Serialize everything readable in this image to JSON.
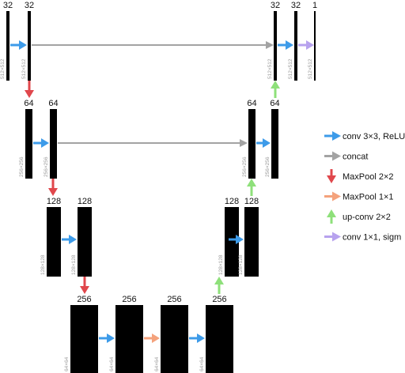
{
  "colors": {
    "block": "#000000",
    "conv": "#3d9be9",
    "concat": "#a3a3a3",
    "maxpool": "#e0474c",
    "maxpool1x1": "#f4a27c",
    "upconv": "#8ee07a",
    "conv1x1": "#b7a2ee"
  },
  "blocks": [
    {
      "id": "e1a",
      "channels": "32",
      "size": "512×512"
    },
    {
      "id": "e1b",
      "channels": "32",
      "size": "512×512"
    },
    {
      "id": "e2a",
      "channels": "64",
      "size": "256×256"
    },
    {
      "id": "e2b",
      "channels": "64",
      "size": "256×256"
    },
    {
      "id": "e3a",
      "channels": "128",
      "size": "128×128"
    },
    {
      "id": "e3b",
      "channels": "128",
      "size": "128×128"
    },
    {
      "id": "b1",
      "channels": "256",
      "size": "64×64"
    },
    {
      "id": "b2",
      "channels": "256",
      "size": "64×64"
    },
    {
      "id": "b3",
      "channels": "256",
      "size": "64×64"
    },
    {
      "id": "b4",
      "channels": "256",
      "size": "64×64"
    },
    {
      "id": "d3a",
      "channels": "128",
      "size": "128×128"
    },
    {
      "id": "d3b",
      "channels": "128",
      "size": "128×128"
    },
    {
      "id": "d2a",
      "channels": "64",
      "size": "256×256"
    },
    {
      "id": "d2b",
      "channels": "64",
      "size": "256×256"
    },
    {
      "id": "d1a",
      "channels": "32",
      "size": "512×512"
    },
    {
      "id": "d1b",
      "channels": "32",
      "size": "512×512"
    },
    {
      "id": "out",
      "channels": "1",
      "size": "512×512"
    }
  ],
  "legend": [
    {
      "kind": "conv",
      "label": "conv 3×3, ReLU"
    },
    {
      "kind": "concat",
      "label": "concat"
    },
    {
      "kind": "maxpool",
      "label": "MaxPool 2×2"
    },
    {
      "kind": "maxpool1x1",
      "label": "MaxPool 1×1"
    },
    {
      "kind": "upconv",
      "label": "up-conv 2×2"
    },
    {
      "kind": "conv1x1",
      "label": "conv 1×1, sigm"
    }
  ]
}
